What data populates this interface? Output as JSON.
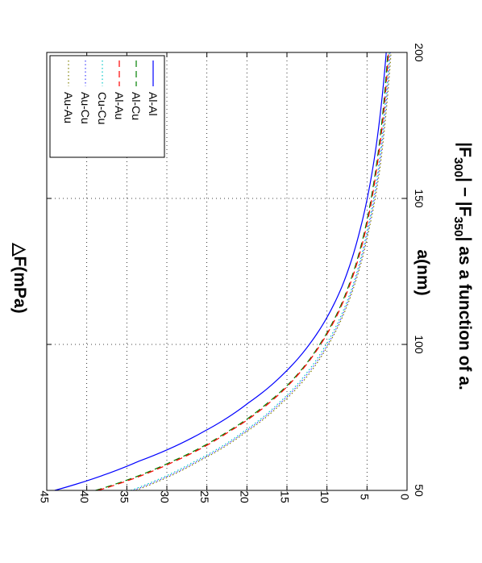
{
  "chart_data": {
    "type": "line",
    "orientation": "rotated-90-clockwise",
    "title": {
      "prefix": "|F",
      "sub1": "300",
      "middle": "| − |F",
      "sub2": "350",
      "suffix": "| as a function of a."
    },
    "xlabel": "a(nm)",
    "ylabel": "△F(mPa)",
    "xlim": [
      50,
      200
    ],
    "ylim": [
      0,
      45
    ],
    "x_ticks": [
      "50",
      "100",
      "150",
      "200"
    ],
    "y_ticks": [
      "0",
      "5",
      "10",
      "15",
      "20",
      "25",
      "30",
      "35",
      "40",
      "45"
    ],
    "grid": true,
    "legend_position": "top-right",
    "x": [
      50,
      60,
      70,
      80,
      90,
      100,
      120,
      140,
      160,
      180,
      200
    ],
    "series": [
      {
        "name": "Al-Al",
        "color": "#0000ff",
        "style": "solid",
        "values": [
          44.0,
          33.5,
          25.5,
          19.8,
          15.4,
          12.2,
          8.1,
          5.8,
          4.3,
          3.3,
          2.6
        ]
      },
      {
        "name": "Al-Cu",
        "color": "#008000",
        "style": "dashed",
        "values": [
          38.9,
          29.3,
          22.5,
          17.4,
          13.6,
          10.9,
          7.3,
          5.2,
          3.9,
          3.0,
          2.4
        ]
      },
      {
        "name": "Al-Au",
        "color": "#ff0000",
        "style": "dashed",
        "values": [
          38.6,
          29.0,
          22.3,
          17.2,
          13.5,
          10.8,
          7.2,
          5.1,
          3.8,
          2.9,
          2.3
        ]
      },
      {
        "name": "Cu-Cu",
        "color": "#00c8c8",
        "style": "dotted",
        "values": [
          34.5,
          26.5,
          20.5,
          16.0,
          12.6,
          10.1,
          6.8,
          4.9,
          3.6,
          2.8,
          2.2
        ]
      },
      {
        "name": "Au-Cu",
        "color": "#4040ff",
        "style": "dotted",
        "values": [
          34.2,
          26.2,
          20.3,
          15.8,
          12.4,
          9.9,
          6.7,
          4.8,
          3.5,
          2.7,
          2.1
        ]
      },
      {
        "name": "Au-Au",
        "color": "#808000",
        "style": "dotted",
        "values": [
          33.9,
          26.0,
          20.1,
          15.6,
          12.2,
          9.8,
          6.6,
          4.7,
          3.4,
          2.6,
          2.0
        ]
      }
    ]
  }
}
